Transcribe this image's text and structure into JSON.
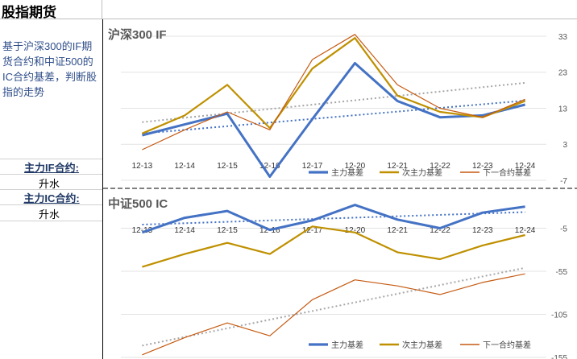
{
  "header": {
    "title": "股指期货"
  },
  "sidebar": {
    "description": "基于沪深300的IF期货合约和中证500的IC合约基差，判断股指的走势",
    "if_label": "主力IF合约:",
    "if_value": "升水",
    "ic_label": "主力IC合约:",
    "ic_value": "升水"
  },
  "colors": {
    "main": "#4472C4",
    "second": "#BF9000",
    "next": "#C55A11",
    "trend_gray": "#A6A6A6"
  },
  "chart_data": [
    {
      "type": "line",
      "title": "沪深300 IF",
      "categories": [
        "12-13",
        "12-14",
        "12-15",
        "12-16",
        "12-17",
        "12-20",
        "12-21",
        "12-22",
        "12-23",
        "12-24"
      ],
      "series": [
        {
          "name": "主力基差",
          "values": [
            5.5,
            8.5,
            11.5,
            -6,
            10,
            25.5,
            15,
            10.5,
            11,
            14
          ]
        },
        {
          "name": "次主力基差",
          "values": [
            6,
            11,
            19.5,
            7.5,
            24,
            32.5,
            16.5,
            12,
            10.5,
            15
          ]
        },
        {
          "name": "下一合约基差",
          "values": [
            1.5,
            7,
            12,
            7,
            26.5,
            33.5,
            19.5,
            13,
            10.5,
            15.5
          ]
        }
      ],
      "yticks": [
        33,
        23,
        13,
        3,
        -7
      ],
      "ylim": [
        -7,
        35
      ],
      "legend": "bottom-right",
      "trendlines": true
    },
    {
      "type": "line",
      "title": "中证500 IC",
      "categories": [
        "12-13",
        "12-14",
        "12-15",
        "12-16",
        "12-17",
        "12-20",
        "12-21",
        "12-22",
        "12-23",
        "12-24"
      ],
      "series": [
        {
          "name": "主力基差",
          "values": [
            -10,
            7,
            15,
            -7,
            4,
            22,
            5,
            -5,
            13,
            20
          ]
        },
        {
          "name": "次主力基差",
          "values": [
            -50,
            -35,
            -22,
            -35,
            -3,
            -10,
            -33,
            -41,
            -25,
            -13
          ]
        },
        {
          "name": "下一合约基差",
          "values": [
            -152,
            -132,
            -115,
            -130,
            -88,
            -65,
            -72,
            -82,
            -68,
            -58
          ]
        }
      ],
      "yticks": [
        -5,
        -55,
        -105,
        -155
      ],
      "ylim": [
        -155,
        30
      ],
      "legend": "bottom-right",
      "trendlines": true
    }
  ]
}
